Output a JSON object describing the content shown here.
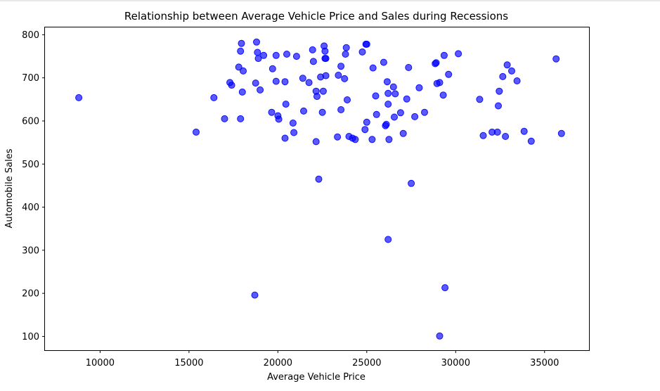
{
  "chart_data": {
    "type": "scatter",
    "title": "Relationship between Average Vehicle Price and Sales during Recessions",
    "xlabel": "Average Vehicle Price",
    "ylabel": "Automobile Sales",
    "xlim": [
      6900,
      37500
    ],
    "ylim": [
      68,
      817
    ],
    "xticks": [
      10000,
      15000,
      20000,
      25000,
      30000,
      35000
    ],
    "yticks": [
      100,
      200,
      300,
      400,
      500,
      600,
      700,
      800
    ],
    "grid": false,
    "legend": "none",
    "marker_color": "#0000ff",
    "points": [
      [
        8800,
        654
      ],
      [
        15400,
        574
      ],
      [
        16400,
        654
      ],
      [
        17000,
        605
      ],
      [
        17300,
        689
      ],
      [
        17400,
        683
      ],
      [
        17800,
        725
      ],
      [
        17900,
        605
      ],
      [
        17900,
        762
      ],
      [
        17950,
        780
      ],
      [
        18000,
        667
      ],
      [
        18050,
        716
      ],
      [
        18700,
        196
      ],
      [
        18750,
        688
      ],
      [
        18800,
        783
      ],
      [
        18850,
        759
      ],
      [
        18900,
        745
      ],
      [
        19000,
        672
      ],
      [
        19200,
        752
      ],
      [
        19650,
        620
      ],
      [
        19700,
        721
      ],
      [
        19900,
        692
      ],
      [
        19900,
        752
      ],
      [
        20000,
        612
      ],
      [
        20050,
        604
      ],
      [
        20400,
        560
      ],
      [
        20400,
        691
      ],
      [
        20450,
        639
      ],
      [
        20500,
        755
      ],
      [
        20850,
        595
      ],
      [
        20900,
        573
      ],
      [
        21050,
        750
      ],
      [
        21400,
        699
      ],
      [
        21450,
        623
      ],
      [
        21750,
        689
      ],
      [
        21950,
        765
      ],
      [
        22000,
        738
      ],
      [
        22150,
        552
      ],
      [
        22150,
        669
      ],
      [
        22200,
        657
      ],
      [
        22300,
        465
      ],
      [
        22400,
        702
      ],
      [
        22500,
        620
      ],
      [
        22550,
        669
      ],
      [
        22600,
        774
      ],
      [
        22650,
        762
      ],
      [
        22650,
        745
      ],
      [
        22700,
        705
      ],
      [
        22700,
        745
      ],
      [
        23350,
        563
      ],
      [
        23400,
        706
      ],
      [
        23550,
        626
      ],
      [
        23550,
        727
      ],
      [
        23750,
        698
      ],
      [
        23800,
        755
      ],
      [
        23850,
        770
      ],
      [
        23900,
        649
      ],
      [
        24000,
        564
      ],
      [
        24200,
        560
      ],
      [
        24350,
        557
      ],
      [
        24750,
        760
      ],
      [
        24900,
        580
      ],
      [
        24950,
        778
      ],
      [
        25000,
        778
      ],
      [
        25000,
        597
      ],
      [
        25300,
        557
      ],
      [
        25350,
        723
      ],
      [
        25500,
        658
      ],
      [
        25550,
        615
      ],
      [
        25950,
        736
      ],
      [
        26050,
        589
      ],
      [
        26100,
        592
      ],
      [
        26150,
        691
      ],
      [
        26200,
        664
      ],
      [
        26200,
        639
      ],
      [
        26200,
        325
      ],
      [
        26250,
        557
      ],
      [
        26500,
        679
      ],
      [
        26550,
        609
      ],
      [
        26600,
        663
      ],
      [
        26900,
        619
      ],
      [
        27050,
        571
      ],
      [
        27250,
        651
      ],
      [
        27350,
        724
      ],
      [
        27500,
        455
      ],
      [
        27700,
        610
      ],
      [
        27950,
        677
      ],
      [
        28250,
        620
      ],
      [
        28850,
        733
      ],
      [
        28900,
        735
      ],
      [
        28950,
        687
      ],
      [
        29100,
        101
      ],
      [
        29100,
        689
      ],
      [
        29300,
        660
      ],
      [
        29350,
        752
      ],
      [
        29400,
        213
      ],
      [
        29600,
        708
      ],
      [
        30150,
        756
      ],
      [
        31350,
        650
      ],
      [
        31550,
        566
      ],
      [
        32050,
        574
      ],
      [
        32350,
        574
      ],
      [
        32400,
        635
      ],
      [
        32450,
        669
      ],
      [
        32650,
        703
      ],
      [
        32800,
        564
      ],
      [
        32900,
        730
      ],
      [
        33150,
        716
      ],
      [
        33450,
        693
      ],
      [
        33850,
        576
      ],
      [
        34250,
        553
      ],
      [
        35650,
        744
      ],
      [
        35950,
        571
      ]
    ]
  }
}
